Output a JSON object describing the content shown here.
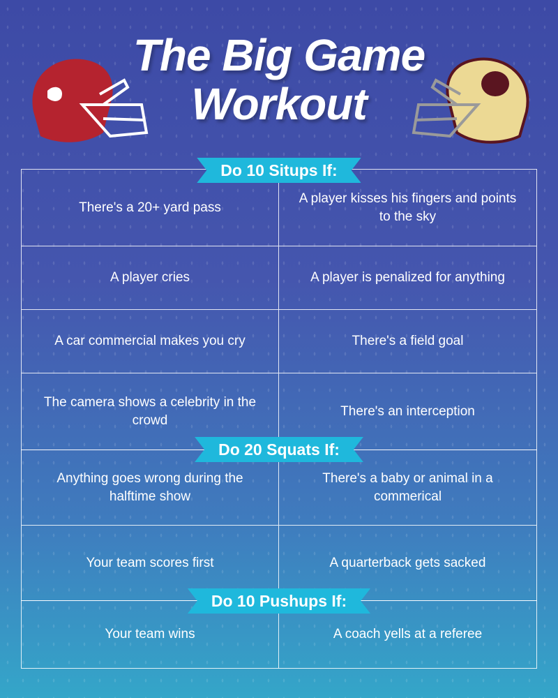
{
  "title": {
    "line1": "The Big Game",
    "line2": "Workout"
  },
  "colors": {
    "banner": "#1fb8dc",
    "left_helmet": "#b5232f",
    "right_helmet": "#ecd994",
    "right_helmet_trim": "#5a1520"
  },
  "sections": [
    {
      "heading": "Do 10 Situps If:",
      "rows": [
        [
          "There's a 20+ yard pass",
          "A player kisses his fingers and points to the sky"
        ],
        [
          "A player cries",
          "A player is penalized for anything"
        ],
        [
          "A car commercial makes you cry",
          "There's a field goal"
        ],
        [
          "The camera shows a celebrity in the crowd",
          "There's an interception"
        ]
      ]
    },
    {
      "heading": "Do 20 Squats If:",
      "rows": [
        [
          "Anything goes wrong during the halftime show",
          "There's a baby or animal in a commerical"
        ],
        [
          "Your team scores first",
          "A quarterback gets sacked"
        ]
      ]
    },
    {
      "heading": "Do 10 Pushups If:",
      "rows": [
        [
          "Your team wins",
          "A coach yells at a referee"
        ]
      ]
    }
  ]
}
